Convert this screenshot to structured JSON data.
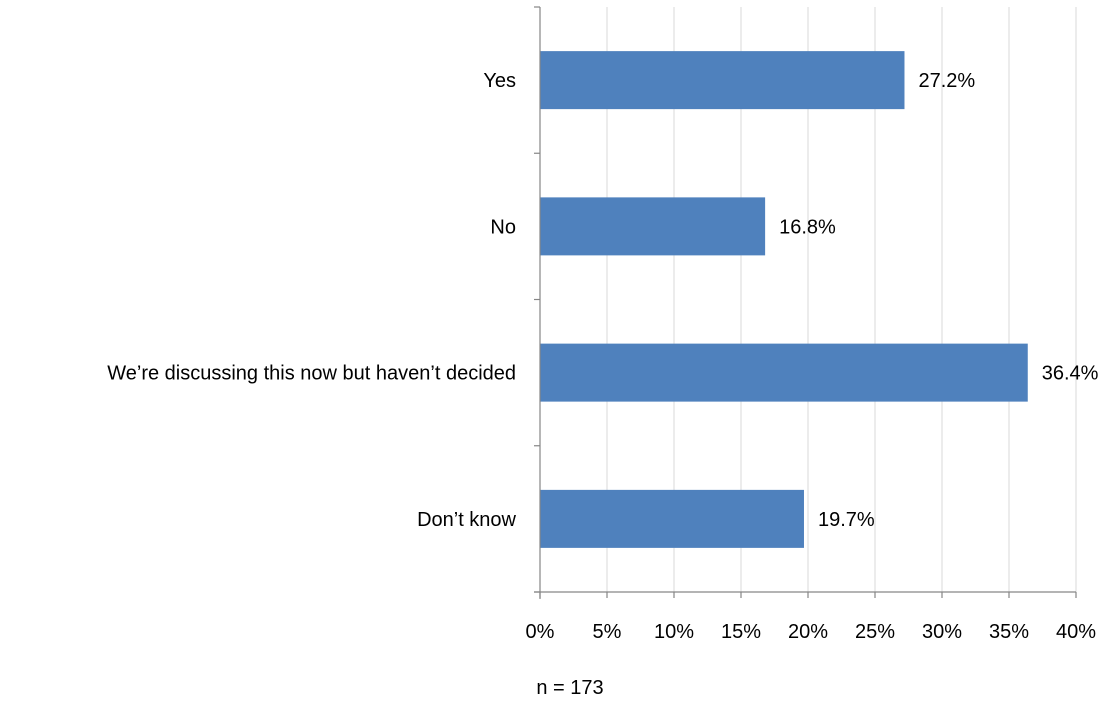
{
  "chart_data": {
    "type": "bar",
    "orientation": "horizontal",
    "categories": [
      "Yes",
      "No",
      "We’re discussing this now but haven’t decided",
      "Don’t know"
    ],
    "values": [
      27.2,
      16.8,
      36.4,
      19.7
    ],
    "value_labels": [
      "27.2%",
      "16.8%",
      "36.4%",
      "19.7%"
    ],
    "xlim": [
      0,
      40
    ],
    "x_ticks": [
      0,
      5,
      10,
      15,
      20,
      25,
      30,
      35,
      40
    ],
    "x_tick_labels": [
      "0%",
      "5%",
      "10%",
      "15%",
      "20%",
      "25%",
      "30%",
      "35%",
      "40%"
    ],
    "grid": "vertical",
    "bar_color": "#4F81BD",
    "note": "n = 173"
  }
}
